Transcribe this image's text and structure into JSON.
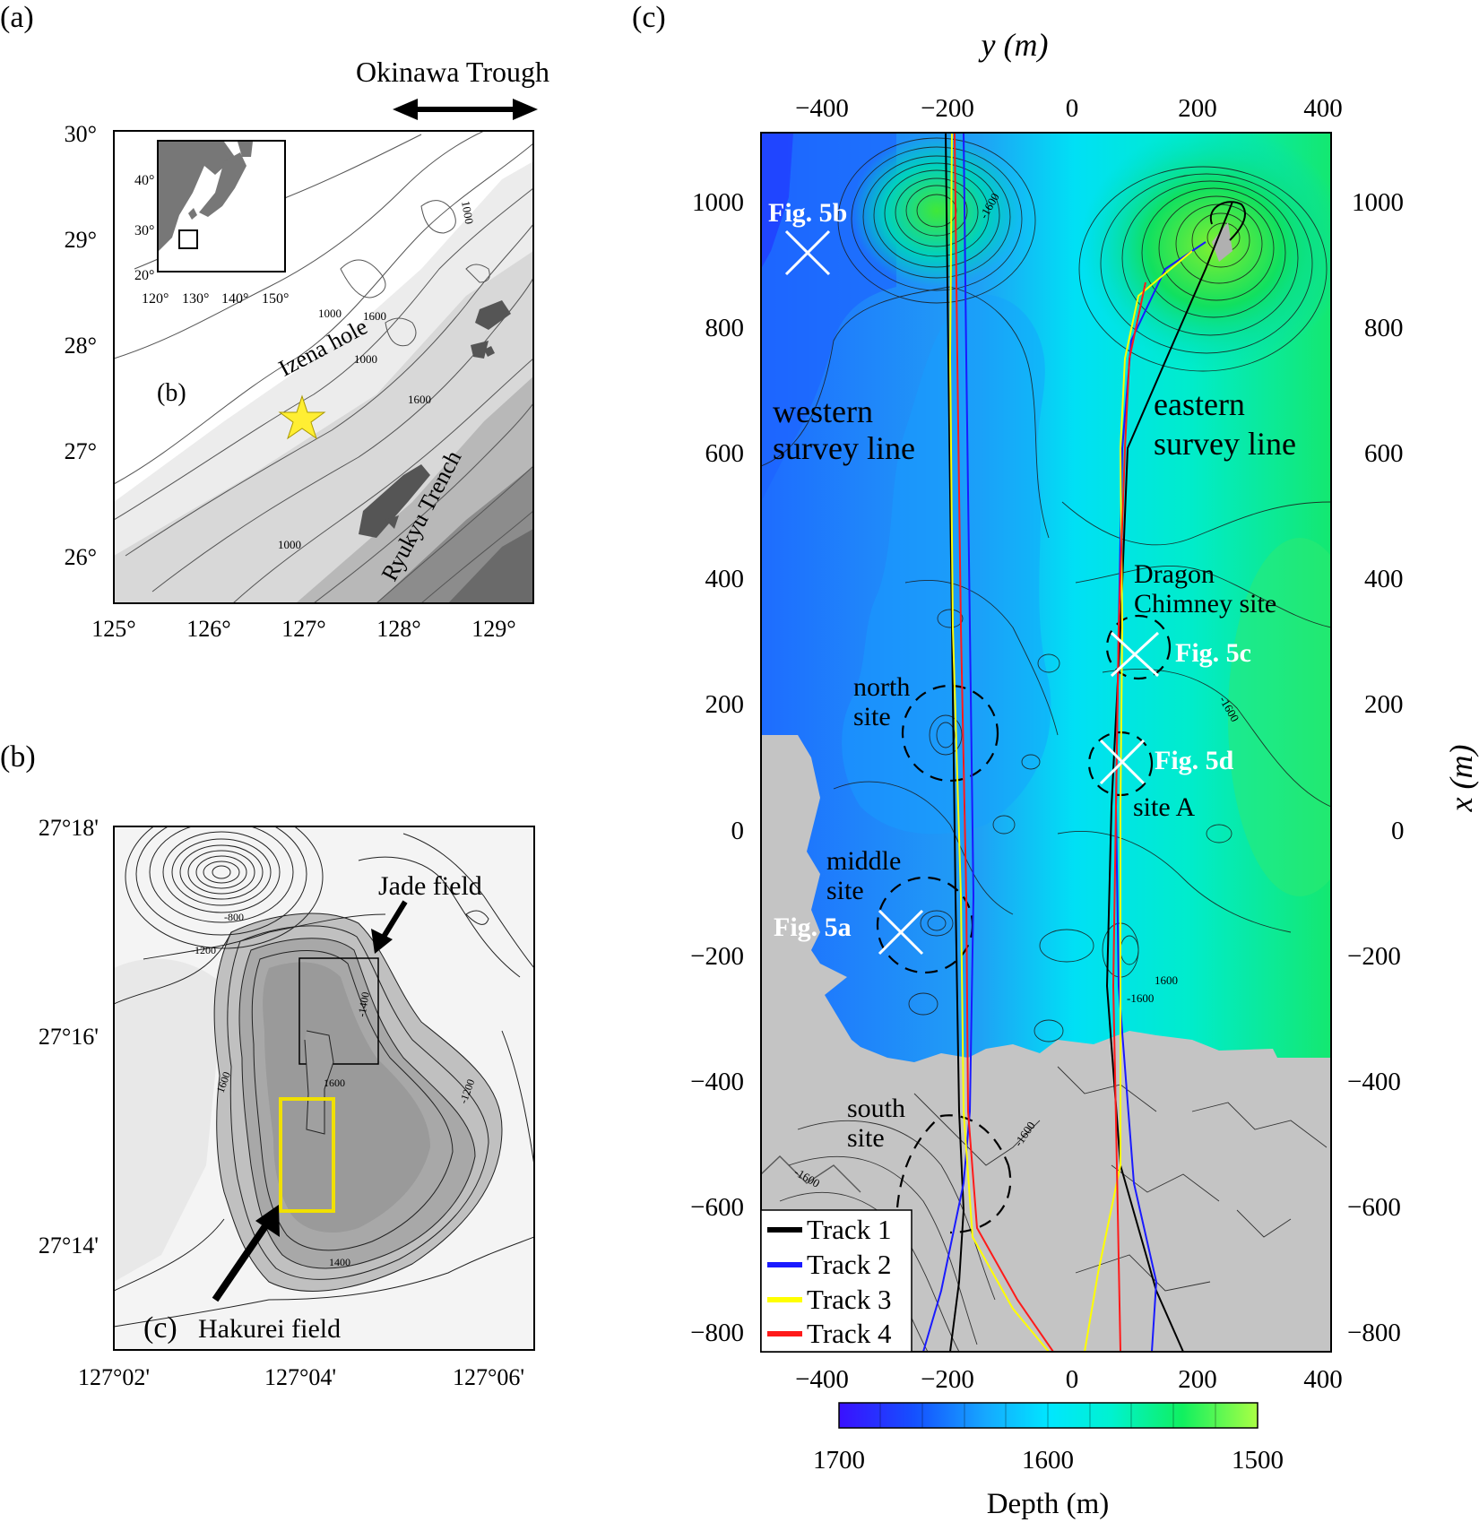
{
  "panel_a": {
    "label": "(a)",
    "trough_label": "Okinawa Trough",
    "lat_ticks": [
      "30°",
      "29°",
      "28°",
      "27°",
      "26°"
    ],
    "lon_ticks": [
      "125°",
      "126°",
      "127°",
      "128°",
      "129°"
    ],
    "inset_lat_ticks": [
      "40°",
      "30°",
      "20°"
    ],
    "inset_lon_ticks": [
      "120°",
      "130°",
      "140°",
      "150°"
    ],
    "label_b": "(b)",
    "izena": "Izena hole",
    "ryukyu": "Ryukyu Trench",
    "contours": [
      "1000",
      "1000",
      "1600",
      "1000",
      "1600",
      "1000",
      "1000"
    ]
  },
  "panel_b": {
    "label": "(b)",
    "lat_ticks": [
      "27°18'",
      "27°16'",
      "27°14'"
    ],
    "lon_ticks": [
      "127°02'",
      "127°04'",
      "127°06'"
    ],
    "jade": "Jade field",
    "hakurei_c": "(c)",
    "hakurei": "Hakurei field",
    "contours": [
      "-800",
      "-1200",
      "-1400",
      "1600",
      "1600",
      "-1200",
      "1400"
    ]
  },
  "panel_c": {
    "label": "(c)",
    "y_axis_label": "y (m)",
    "x_axis_label": "x (m)",
    "y_ticks": [
      "−400",
      "−200",
      "0",
      "200",
      "400"
    ],
    "x_ticks": [
      "1000",
      "800",
      "600",
      "400",
      "200",
      "0",
      "−200",
      "−400",
      "−600",
      "−800"
    ],
    "western": [
      "western",
      "survey line"
    ],
    "eastern": [
      "eastern",
      "survey line"
    ],
    "dragon": [
      "Dragon",
      "Chimney site"
    ],
    "north": [
      "north",
      "site"
    ],
    "middle": [
      "middle",
      "site"
    ],
    "south": [
      "south",
      "site"
    ],
    "site_a": "site A",
    "figs": [
      "Fig. 5b",
      "Fig. 5c",
      "Fig. 5d",
      "Fig. 5a"
    ],
    "contours": [
      "-1600",
      "-1600",
      "-1600",
      "1600",
      "-1600",
      "-1600"
    ],
    "legend": [
      {
        "label": "Track 1",
        "color": "#000000"
      },
      {
        "label": "Track 2",
        "color": "#1a1aff"
      },
      {
        "label": "Track 3",
        "color": "#ffff00"
      },
      {
        "label": "Track 4",
        "color": "#ff1a1a"
      }
    ],
    "colorbar_ticks": [
      "1700",
      "1600",
      "1500"
    ],
    "colorbar_label": "Depth (m)"
  }
}
